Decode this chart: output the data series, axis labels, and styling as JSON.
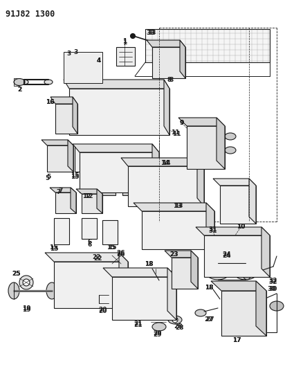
{
  "title": "91J82 1300",
  "bg": "#ffffff",
  "lc": "#1a1a1a",
  "fig_w": 4.12,
  "fig_h": 5.33,
  "dpi": 100,
  "lw": 0.8
}
